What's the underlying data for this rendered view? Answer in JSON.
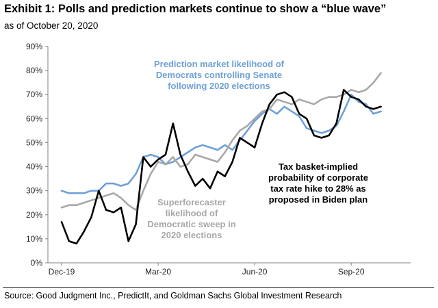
{
  "header": {
    "title": "Exhibit 1: Polls and prediction markets continue to show a “blue wave”",
    "subtitle": "as of October 20, 2020"
  },
  "footer": {
    "source": "Source: Good Judgment Inc., PredictIt, and Goldman Sachs Global Investment Research"
  },
  "chart_data": {
    "type": "line",
    "title": "Exhibit 1: Polls and prediction markets continue to show a “blue wave”",
    "subtitle": "as of October 20, 2020",
    "xlabel": "",
    "ylabel": "",
    "x_ticks": [
      "Dec-19",
      "Mar-20",
      "Jun-20",
      "Sep-20"
    ],
    "y_ticks": [
      "0%",
      "10%",
      "20%",
      "30%",
      "40%",
      "50%",
      "60%",
      "70%",
      "80%",
      "90%"
    ],
    "ylim": [
      0,
      90
    ],
    "x_unit": "weeks since Dec-19",
    "xlim": [
      0,
      47
    ],
    "tick_positions": [
      0,
      13,
      26,
      39
    ],
    "grid": false,
    "colors": {
      "blue": "#6ea0d8",
      "gray": "#a8a8a8",
      "black": "#000000",
      "axis": "#808080"
    },
    "series": [
      {
        "name": "Prediction market likelihood of Democrats controlling Senate following 2020 elections",
        "color": "#6ea0d8",
        "x": [
          0,
          1,
          2,
          3,
          4,
          5,
          6,
          7,
          8,
          9,
          10,
          11,
          12,
          13,
          14,
          15,
          16,
          17,
          18,
          19,
          20,
          21,
          22,
          23,
          24,
          25,
          26,
          27,
          28,
          29,
          30,
          31,
          32,
          33,
          34,
          35,
          36,
          37,
          38,
          39,
          40,
          41,
          42,
          43
        ],
        "values": [
          30,
          29,
          29,
          29,
          30,
          30,
          33,
          33,
          32,
          33,
          37,
          44,
          45,
          44,
          41,
          42,
          44,
          46,
          48,
          49,
          48,
          47,
          49,
          47,
          51,
          55,
          59,
          62,
          64,
          62,
          65,
          63,
          61,
          56,
          55,
          54,
          55,
          57,
          63,
          70,
          67,
          66,
          62,
          63
        ]
      },
      {
        "name": "Superforecaster likelihood of Democratic sweep in 2020 elections",
        "color": "#a8a8a8",
        "x": [
          0,
          1,
          2,
          3,
          4,
          5,
          6,
          7,
          8,
          9,
          10,
          11,
          12,
          13,
          14,
          15,
          16,
          17,
          18,
          19,
          20,
          21,
          22,
          23,
          24,
          25,
          26,
          27,
          28,
          29,
          30,
          31,
          32,
          33,
          34,
          35,
          36,
          37,
          38,
          39,
          40,
          41,
          42,
          43
        ],
        "values": [
          23,
          24,
          24,
          25,
          26,
          27,
          28,
          29,
          27,
          24,
          22,
          30,
          37,
          42,
          41,
          44,
          40,
          41,
          45,
          44,
          43,
          42,
          46,
          51,
          55,
          57,
          60,
          63,
          64,
          68,
          67,
          66,
          68,
          67,
          66,
          68,
          69,
          69,
          70,
          72,
          71,
          72,
          75,
          79
        ]
      },
      {
        "name": "Tax basket-implied probability of corporate tax rate hike to 28% as proposed in Biden plan",
        "color": "#000000",
        "x": [
          0,
          1,
          2,
          3,
          4,
          5,
          6,
          7,
          8,
          9,
          10,
          11,
          12,
          13,
          14,
          15,
          16,
          17,
          18,
          19,
          20,
          21,
          22,
          23,
          24,
          25,
          26,
          27,
          28,
          29,
          30,
          31,
          32,
          33,
          34,
          35,
          36,
          37,
          38,
          39,
          40,
          41,
          42,
          43
        ],
        "values": [
          17,
          9,
          8,
          13,
          19,
          30,
          22,
          21,
          23,
          9,
          16,
          44,
          40,
          43,
          45,
          58,
          45,
          38,
          32,
          35,
          31,
          38,
          36,
          42,
          52,
          50,
          48,
          58,
          66,
          70,
          71,
          69,
          62,
          60,
          53,
          52,
          53,
          58,
          72,
          69,
          68,
          65,
          64,
          65
        ]
      }
    ],
    "annotations": [
      {
        "series": 0,
        "lines": [
          "Prediction market likelihood of",
          "Democrats controlling Senate",
          "following 2020 elections"
        ]
      },
      {
        "series": 1,
        "lines": [
          "Superforecaster",
          "likelihood of",
          "Democratic sweep in",
          "2020 elections"
        ]
      },
      {
        "series": 2,
        "lines": [
          "Tax basket-implied",
          "probability of corporate",
          "tax rate hike to 28% as",
          "proposed in Biden plan"
        ]
      }
    ]
  }
}
